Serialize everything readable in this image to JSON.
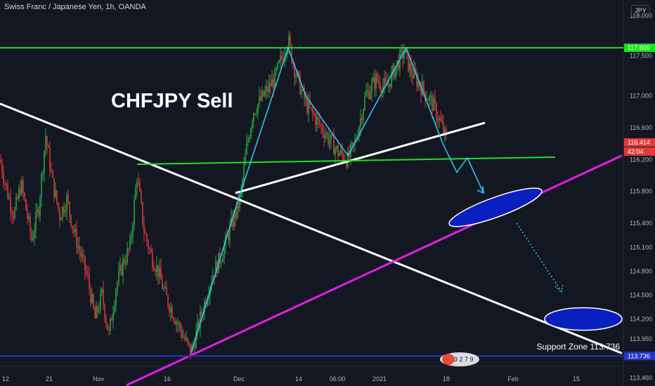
{
  "header": {
    "symbol": "Swiss Franc / Japanese Yen, 1h, OANDA",
    "currency": "JPY"
  },
  "annotations": {
    "title": "CHFJPY Sell",
    "support_zone": "Support Zone 113.736"
  },
  "logo": {
    "text": "3 2 7 9"
  },
  "colors": {
    "background": "#131722",
    "candle_up": "#26a641",
    "candle_down": "#d9363e",
    "green_line": "#1ee01e",
    "magenta_line": "#e020e0",
    "blue_line": "#2434c8",
    "cyan_path": "#2ec4e6",
    "white_line": "#ffffff",
    "ellipse_blue": "#0a1fbf",
    "current_price_tag": "#e03a3a"
  },
  "chart_data": {
    "type": "candlestick",
    "title": "CHFJPY Sell",
    "instrument": "Swiss Franc / Japanese Yen",
    "timeframe": "1h",
    "source": "OANDA",
    "y_range": [
      113.36,
      118.2
    ],
    "y_ticks": [
      118.0,
      117.6,
      117.5,
      117.0,
      116.6,
      116.414,
      116.2,
      115.8,
      115.4,
      115.1,
      114.8,
      114.5,
      114.2,
      113.95,
      113.736,
      113.46
    ],
    "y_tick_labels": [
      "118.000",
      "117.600",
      "117.500",
      "117.000",
      "116.600",
      "116.414",
      "116.200",
      "115.800",
      "115.400",
      "115.100",
      "114.800",
      "114.500",
      "114.200",
      "113.950",
      "113.736",
      "113.460"
    ],
    "x_ticks": [
      "12",
      "21",
      "Nov",
      "16",
      "Dec",
      "14",
      "06:00",
      "2021",
      "18",
      "Feb",
      "15"
    ],
    "price_tags": [
      {
        "label": "117.600",
        "value": 117.6,
        "color": "#1ee01e"
      },
      {
        "label": "116.414",
        "value": 116.414,
        "color": "#e03a3a"
      },
      {
        "label": "42:04",
        "value": 116.3,
        "color": "#e03a3a"
      },
      {
        "label": "113.736",
        "value": 113.736,
        "color": "#2434c8"
      }
    ],
    "price_path": [
      [
        0,
        116.2
      ],
      [
        10,
        115.8
      ],
      [
        20,
        115.5
      ],
      [
        30,
        115.9
      ],
      [
        45,
        115.2
      ],
      [
        55,
        115.6
      ],
      [
        65,
        116.5
      ],
      [
        75,
        115.9
      ],
      [
        85,
        115.5
      ],
      [
        95,
        115.7
      ],
      [
        105,
        115.3
      ],
      [
        115,
        115.0
      ],
      [
        125,
        114.7
      ],
      [
        135,
        114.2
      ],
      [
        145,
        114.5
      ],
      [
        155,
        114.0
      ],
      [
        165,
        114.6
      ],
      [
        175,
        114.9
      ],
      [
        185,
        115.1
      ],
      [
        195,
        116.0
      ],
      [
        205,
        115.3
      ],
      [
        215,
        115.0
      ],
      [
        225,
        114.8
      ],
      [
        235,
        114.5
      ],
      [
        245,
        114.3
      ],
      [
        255,
        114.1
      ],
      [
        265,
        113.9
      ],
      [
        272,
        113.78
      ],
      [
        285,
        114.2
      ],
      [
        300,
        114.7
      ],
      [
        315,
        115.0
      ],
      [
        330,
        115.4
      ],
      [
        342,
        115.7
      ],
      [
        350,
        116.3
      ],
      [
        360,
        116.8
      ],
      [
        375,
        117.0
      ],
      [
        390,
        117.2
      ],
      [
        402,
        117.5
      ],
      [
        410,
        117.7
      ],
      [
        420,
        117.3
      ],
      [
        435,
        116.9
      ],
      [
        450,
        116.7
      ],
      [
        465,
        116.5
      ],
      [
        480,
        116.3
      ],
      [
        495,
        116.2
      ],
      [
        505,
        116.4
      ],
      [
        520,
        117.0
      ],
      [
        535,
        117.2
      ],
      [
        550,
        117.1
      ],
      [
        565,
        117.4
      ],
      [
        575,
        117.55
      ],
      [
        585,
        117.3
      ],
      [
        600,
        117.1
      ],
      [
        615,
        116.9
      ],
      [
        625,
        116.7
      ],
      [
        635,
        116.45
      ]
    ],
    "overlays": [
      {
        "type": "trendline",
        "color": "white",
        "points": [
          [
            0,
            116.9
          ],
          [
            885,
            113.77
          ]
        ]
      },
      {
        "type": "trendline",
        "color": "white",
        "points": [
          [
            335,
            115.78
          ],
          [
            690,
            116.66
          ]
        ]
      },
      {
        "type": "horizontal",
        "color": "green",
        "value": 117.6
      },
      {
        "type": "trendline",
        "color": "green",
        "points": [
          [
            195,
            116.14
          ],
          [
            790,
            116.23
          ]
        ]
      },
      {
        "type": "trendline",
        "color": "magenta",
        "points": [
          [
            180,
            113.37
          ],
          [
            885,
            116.25
          ]
        ]
      },
      {
        "type": "horizontal",
        "color": "blue",
        "value": 113.736
      },
      {
        "type": "path",
        "color": "cyan",
        "points": [
          [
            272,
            113.78
          ],
          [
            342,
            115.78
          ],
          [
            410,
            117.6
          ],
          [
            435,
            117.0
          ],
          [
            495,
            116.25
          ],
          [
            578,
            117.6
          ],
          [
            630,
            116.4
          ],
          [
            650,
            116.04
          ],
          [
            665,
            116.22
          ],
          [
            688,
            115.78
          ]
        ]
      },
      {
        "type": "ellipse",
        "color": "blue",
        "center": [
          705,
          115.6
        ],
        "rx": 70,
        "ry": 14,
        "angle": -20
      },
      {
        "type": "ellipse",
        "color": "blue",
        "center": [
          830,
          114.2
        ],
        "rx": 55,
        "ry": 16,
        "angle": 0
      }
    ]
  }
}
